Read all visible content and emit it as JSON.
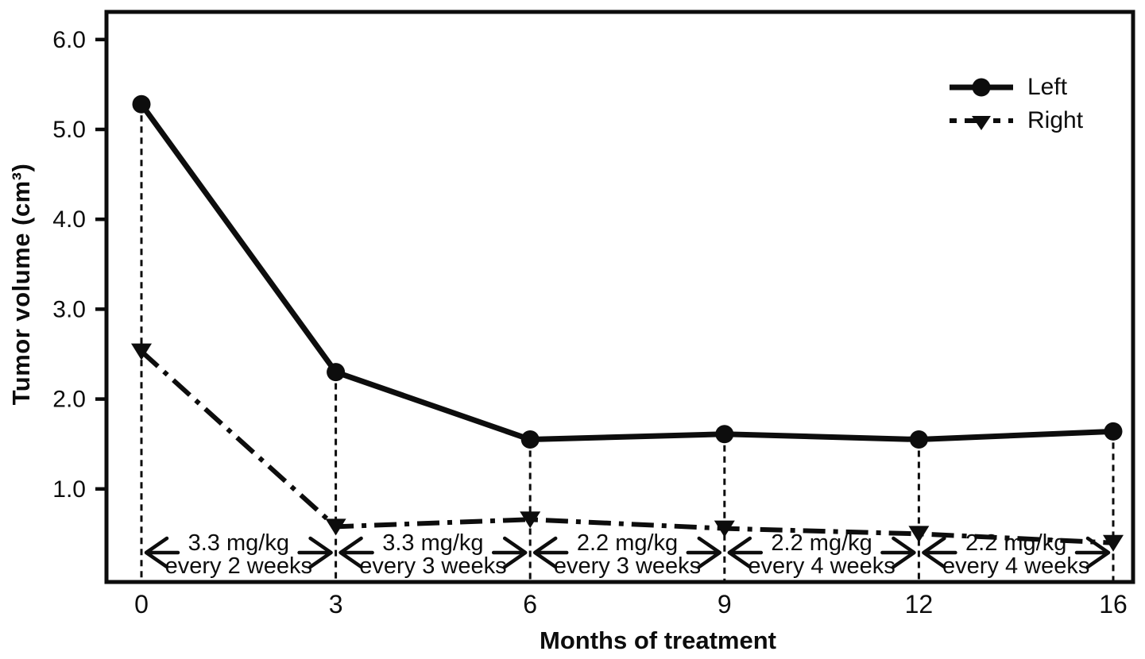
{
  "chart_data": {
    "type": "line",
    "title": "",
    "xlabel": "Months of treatment",
    "ylabel": "Tumor volume (cm³)",
    "categories": [
      0,
      3,
      6,
      9,
      12,
      16
    ],
    "x_tick_labels": [
      "0",
      "3",
      "6",
      "9",
      "12",
      "16"
    ],
    "x_spacing": "even",
    "y_ticks": [
      1.0,
      2.0,
      3.0,
      4.0,
      5.0,
      6.0
    ],
    "y_tick_labels": [
      "1.0",
      "2.0",
      "3.0",
      "4.0",
      "5.0",
      "6.0"
    ],
    "ylim": [
      0,
      6.35
    ],
    "grid": false,
    "legend_position": "top-right",
    "axis_color": "#0d0d0d",
    "background_color": "#ffffff",
    "series": [
      {
        "name": "Left",
        "marker": "circle",
        "line_style": "solid",
        "color": "#0d0d0d",
        "values": [
          5.28,
          2.3,
          1.55,
          1.61,
          1.55,
          1.64
        ]
      },
      {
        "name": "Right",
        "marker": "triangle-down",
        "line_style": "dash-dot",
        "color": "#0d0d0d",
        "values": [
          2.53,
          0.58,
          0.66,
          0.56,
          0.5,
          0.4
        ]
      }
    ],
    "guide_lines": {
      "style": "dashed-vertical",
      "at_categories": [
        0,
        3,
        6,
        9,
        12,
        16
      ],
      "from_series": "Left",
      "to": "x-axis"
    },
    "annotations": [
      {
        "from": 0,
        "to": 3,
        "line1": "3.3 mg/kg",
        "line2": "every 2 weeks"
      },
      {
        "from": 3,
        "to": 6,
        "line1": "3.3 mg/kg",
        "line2": "every 3 weeks"
      },
      {
        "from": 6,
        "to": 9,
        "line1": "2.2 mg/kg",
        "line2": "every 3 weeks"
      },
      {
        "from": 9,
        "to": 12,
        "line1": "2.2 mg/kg",
        "line2": "every 4 weeks"
      },
      {
        "from": 12,
        "to": 16,
        "line1": "2.2 mg/kg",
        "line2": "every 4 weeks"
      }
    ]
  }
}
